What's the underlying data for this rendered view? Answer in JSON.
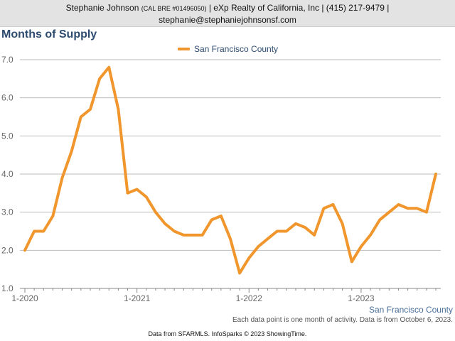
{
  "header": {
    "name": "Stephanie Johnson",
    "license": "(CAL BRE #01496050)",
    "company_phone": "| eXp Realty of California, Inc | (415) 217-9479 |",
    "email": "stephanie@stephaniejohnsonsf.com"
  },
  "footer": {
    "series_label": "San Francisco County",
    "note": "Each data point is one month of activity. Data is from October 6, 2023.",
    "credits": "Data from SFARMLS. InfoSparks © 2023 ShowingTime."
  },
  "colors": {
    "line": "#f0962d",
    "title": "#2d4b6e",
    "grid": "#bbbbbb"
  },
  "chart_data": {
    "type": "line",
    "title": "Months of Supply",
    "xlabel": "",
    "ylabel": "",
    "ylim": [
      1.0,
      7.0
    ],
    "yticks": [
      "1.0",
      "2.0",
      "3.0",
      "4.0",
      "5.0",
      "6.0",
      "7.0"
    ],
    "xticks": [
      {
        "label": "1-2020",
        "index": 0
      },
      {
        "label": "1-2021",
        "index": 12
      },
      {
        "label": "1-2022",
        "index": 24
      },
      {
        "label": "1-2023",
        "index": 36
      }
    ],
    "legend": [
      "San Francisco County"
    ],
    "grid": true,
    "series": [
      {
        "name": "San Francisco County",
        "x": [
          "2020-01",
          "2020-02",
          "2020-03",
          "2020-04",
          "2020-05",
          "2020-06",
          "2020-07",
          "2020-08",
          "2020-09",
          "2020-10",
          "2020-11",
          "2020-12",
          "2021-01",
          "2021-02",
          "2021-03",
          "2021-04",
          "2021-05",
          "2021-06",
          "2021-07",
          "2021-08",
          "2021-09",
          "2021-10",
          "2021-11",
          "2021-12",
          "2022-01",
          "2022-02",
          "2022-03",
          "2022-04",
          "2022-05",
          "2022-06",
          "2022-07",
          "2022-08",
          "2022-09",
          "2022-10",
          "2022-11",
          "2022-12",
          "2023-01",
          "2023-02",
          "2023-03",
          "2023-04",
          "2023-05",
          "2023-06",
          "2023-07",
          "2023-08",
          "2023-09"
        ],
        "values": [
          2.0,
          2.5,
          2.5,
          2.9,
          3.9,
          4.6,
          5.5,
          5.7,
          6.5,
          6.8,
          5.7,
          3.5,
          3.6,
          3.4,
          3.0,
          2.7,
          2.5,
          2.4,
          2.4,
          2.4,
          2.8,
          2.9,
          2.3,
          1.4,
          1.8,
          2.1,
          2.3,
          2.5,
          2.5,
          2.7,
          2.6,
          2.4,
          3.1,
          3.2,
          2.7,
          1.7,
          2.1,
          2.4,
          2.8,
          3.0,
          3.2,
          3.1,
          3.1,
          3.0,
          4.0
        ]
      }
    ]
  }
}
